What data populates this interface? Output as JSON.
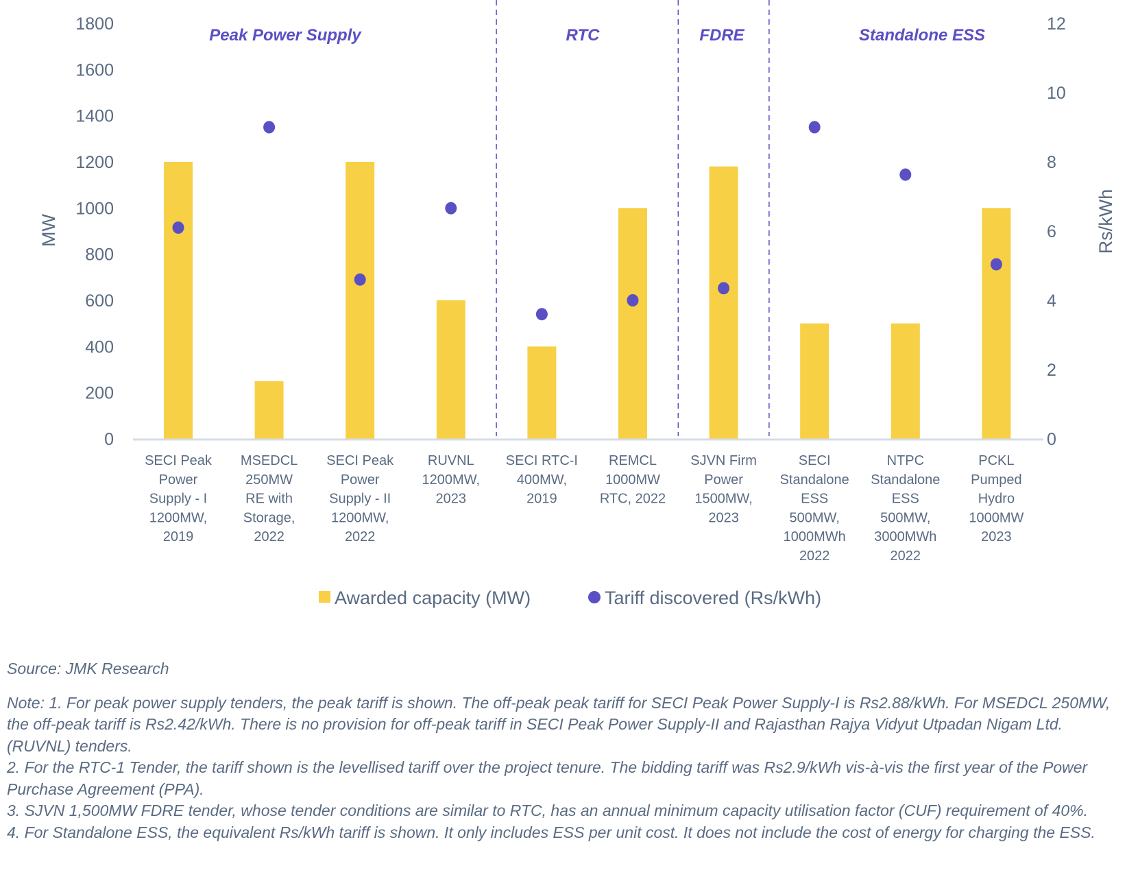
{
  "chart_data": {
    "type": "bar+scatter",
    "categories": [
      [
        "SECI Peak",
        "Power",
        "Supply - I",
        "1200MW,",
        "2019"
      ],
      [
        "MSEDCL",
        "250MW",
        "RE with",
        "Storage,",
        "2022"
      ],
      [
        "SECI Peak",
        "Power",
        "Supply - II",
        "1200MW,",
        "2022"
      ],
      [
        "RUVNL",
        "1200MW,",
        "2023"
      ],
      [
        "SECI RTC-I",
        "400MW,",
        "2019"
      ],
      [
        "REMCL",
        "1000MW",
        "RTC, 2022"
      ],
      [
        "SJVN Firm",
        "Power",
        "1500MW,",
        "2023"
      ],
      [
        "SECI",
        "Standalone",
        "ESS",
        "500MW,",
        "1000MWh",
        "2022"
      ],
      [
        "NTPC",
        "Standalone",
        "ESS",
        "500MW,",
        "3000MWh",
        "2022"
      ],
      [
        "PCKL",
        "Pumped",
        "Hydro",
        "1000MW",
        "2023"
      ]
    ],
    "series": [
      {
        "name": "Awarded capacity (MW)",
        "type": "bar",
        "axis": "left",
        "color": "#F7D046",
        "values": [
          1200,
          250,
          1200,
          600,
          400,
          1000,
          1180,
          500,
          500,
          1000
        ]
      },
      {
        "name": "Tariff discovered (Rs/kWh)",
        "type": "scatter",
        "axis": "right",
        "color": "#5B4FC4",
        "values": [
          6.1,
          9.0,
          4.6,
          6.66,
          3.6,
          4.0,
          4.35,
          9.0,
          7.63,
          5.04
        ]
      }
    ],
    "ylabel_left": "MW",
    "ylabel_right": "Rs/kWh",
    "ylim_left": [
      0,
      1800
    ],
    "ylim_right": [
      0,
      12
    ],
    "yticks_left": [
      "0",
      "200",
      "400",
      "600",
      "800",
      "1000",
      "1200",
      "1400",
      "1600",
      "1800"
    ],
    "yticks_right": [
      "0",
      "2",
      "4",
      "6",
      "8",
      "10",
      "12"
    ],
    "grid": false,
    "legend_position": "bottom",
    "sections": [
      {
        "label": "Peak Power Supply",
        "from": 0,
        "to": 3
      },
      {
        "label": "RTC",
        "from": 4,
        "to": 5
      },
      {
        "label": "FDRE",
        "from": 6,
        "to": 6
      },
      {
        "label": "Standalone ESS",
        "from": 7,
        "to": 9
      }
    ],
    "section_divider_color": "#5B4FC4"
  },
  "notes": {
    "source": "Source: JMK Research",
    "lines": [
      "Note: 1. For peak power supply tenders, the peak tariff is shown. The off-peak peak tariff for SECI Peak Power Supply-I is Rs2.88/kWh. For MSEDCL 250MW, the off-peak tariff is Rs2.42/kWh. There is no provision for off-peak tariff in SECI Peak Power Supply-II and Rajasthan Rajya Vidyut Utpadan Nigam Ltd. (RUVNL) tenders.",
      "2. For the RTC-1 Tender, the tariff shown is the levellised tariff over the project tenure. The bidding tariff was Rs2.9/kWh vis-à-vis the first year of the Power Purchase Agreement (PPA).",
      "3. SJVN 1,500MW FDRE tender, whose tender conditions are similar to RTC, has an annual minimum capacity utilisation factor (CUF) requirement of 40%.",
      "4. For Standalone ESS, the equivalent Rs/kWh tariff is shown. It only includes ESS per unit cost. It does not include the cost of energy for charging the ESS."
    ]
  }
}
